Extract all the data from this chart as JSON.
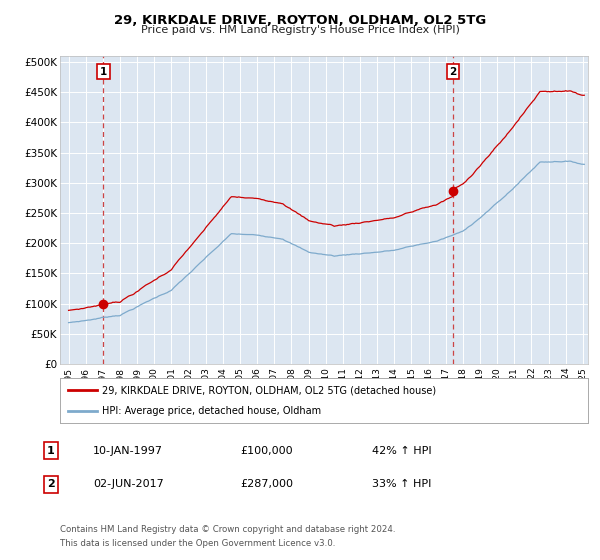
{
  "title_line1": "29, KIRKDALE DRIVE, ROYTON, OLDHAM, OL2 5TG",
  "title_line2": "Price paid vs. HM Land Registry's House Price Index (HPI)",
  "legend_line1": "29, KIRKDALE DRIVE, ROYTON, OLDHAM, OL2 5TG (detached house)",
  "legend_line2": "HPI: Average price, detached house, Oldham",
  "purchase1_date": "10-JAN-1997",
  "purchase1_price": 100000,
  "purchase1_pct": "42% ↑ HPI",
  "purchase2_date": "02-JUN-2017",
  "purchase2_price": 287000,
  "purchase2_pct": "33% ↑ HPI",
  "red_color": "#cc0000",
  "blue_color": "#7eaacc",
  "dashed_color": "#cc4444",
  "plot_bg": "#dce6f1",
  "grid_color": "#ffffff",
  "marker1_year": 1997.03,
  "marker2_year": 2017.42,
  "footnote1": "Contains HM Land Registry data © Crown copyright and database right 2024.",
  "footnote2": "This data is licensed under the Open Government Licence v3.0.",
  "ylim_max": 500000,
  "ylim_min": 0,
  "year_start": 1995,
  "year_end": 2025
}
